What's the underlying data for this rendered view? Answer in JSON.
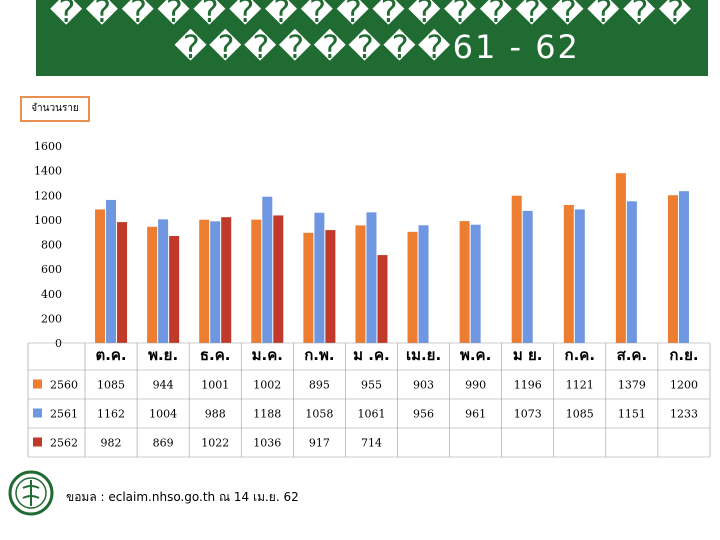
{
  "header": {
    "title_line1": "������������������",
    "title_line2": "��������61 - 62"
  },
  "colors": {
    "banner": "#1f6b31",
    "series": [
      "#ed7d31",
      "#6f96e0",
      "#c0392b"
    ],
    "box_border": "#e8914f"
  },
  "chart_data": {
    "type": "bar",
    "title": "",
    "ylabel": "จำนวนราย",
    "ylim": [
      0,
      1600
    ],
    "yticks": [
      0,
      200,
      400,
      600,
      800,
      1000,
      1200,
      1400,
      1600
    ],
    "grid": false,
    "categories": [
      "ต.ค.",
      "พ.ย.",
      "ธ.ค.",
      "ม.ค.",
      "ก.พ.",
      "มี.ค.",
      "เม.ย.",
      "พ.ค.",
      "มิ.ย.",
      "ก.ค.",
      "ส.ค.",
      "ก.ย."
    ],
    "category_labels_shown": [
      "ต.ค.",
      "พ.ย.",
      "ธ.ค.",
      "ม.ค.",
      "ก.พ.",
      "ม .ค.",
      "เม.ย.",
      "พ.ค.",
      "ม ย.",
      "ก.ค.",
      "ส.ค.",
      "ก.ย."
    ],
    "series": [
      {
        "name": "2560",
        "values": [
          1085,
          944,
          1001,
          1002,
          895,
          955,
          903,
          990,
          1196,
          1121,
          1379,
          1200
        ]
      },
      {
        "name": "2561",
        "values": [
          1162,
          1004,
          988,
          1188,
          1058,
          1061,
          956,
          961,
          1073,
          1085,
          1151,
          1233
        ]
      },
      {
        "name": "2562",
        "values": [
          982,
          869,
          1022,
          1036,
          917,
          714,
          null,
          null,
          null,
          null,
          null,
          null
        ]
      }
    ]
  },
  "footer": {
    "source": "ขอมล   : eclaim.nhso.go.th ณ 14 เม.ย. 62"
  }
}
